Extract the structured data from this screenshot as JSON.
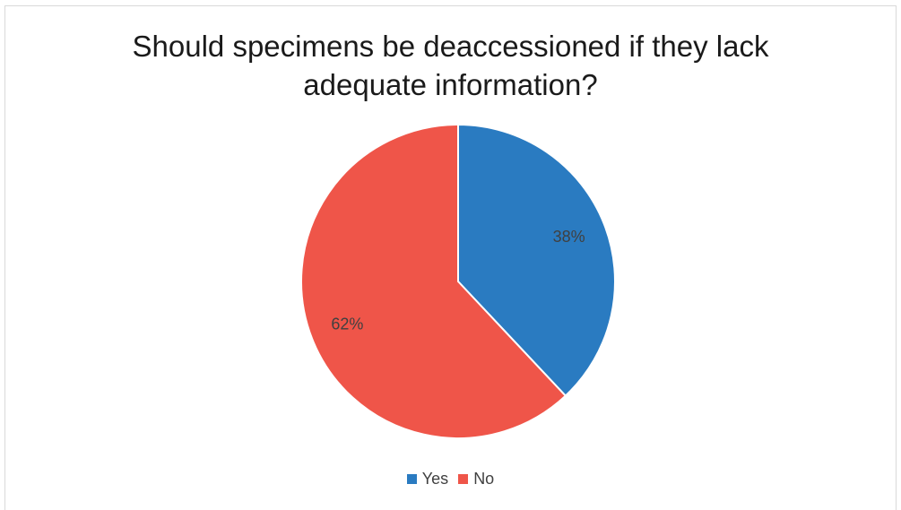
{
  "chart_data": {
    "type": "pie",
    "title": "Should specimens be deaccessioned if they lack adequate information?",
    "title_lines": [
      "Should specimens be deaccessioned if they lack",
      "adequate information?"
    ],
    "categories": [
      "Yes",
      "No"
    ],
    "values": [
      38,
      62
    ],
    "data_labels": [
      "38%",
      "62%"
    ],
    "colors": [
      "#2a7bc1",
      "#ef5549"
    ],
    "legend_position": "bottom",
    "start_angle": "12 o'clock, clockwise"
  }
}
